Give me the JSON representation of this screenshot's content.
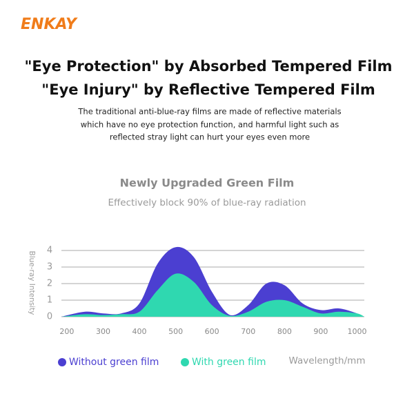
{
  "brand": "ENKAY",
  "headline": [
    "\"Eye Protection\" by Absorbed Tempered Film",
    "\"Eye Injury\" by Reflective Tempered Film"
  ],
  "description": [
    "The traditional anti-blue-ray films are made of reflective materials",
    "which have no eye protection function, and harmful light such as",
    "reflected stray light can hurt your eyes even more"
  ],
  "chart_data": {
    "type": "area",
    "title": "Newly Upgraded Green Film",
    "subtitle": "Effectively block 90% of blue-ray radiation",
    "x_label": "Wavelength/mm",
    "y_label": "Blue-ray Intensity",
    "x": [
      185,
      250,
      300,
      350,
      400,
      450,
      500,
      550,
      600,
      650,
      700,
      750,
      800,
      850,
      900,
      950,
      1000,
      1020
    ],
    "series": [
      {
        "name": "Without green film",
        "color": "#4b3fd1",
        "values": [
          0,
          0.3,
          0.2,
          0.2,
          0.8,
          3.2,
          4.2,
          3.6,
          1.5,
          0.1,
          0.7,
          2.0,
          1.9,
          0.8,
          0.4,
          0.5,
          0.2,
          0
        ]
      },
      {
        "name": "With green film",
        "color": "#2fd8b0",
        "values": [
          0,
          0.15,
          0.1,
          0.15,
          0.3,
          1.6,
          2.6,
          2.1,
          0.7,
          0.05,
          0.3,
          0.9,
          1.0,
          0.6,
          0.2,
          0.3,
          0.2,
          0
        ]
      }
    ],
    "xlim": [
      185,
      1020
    ],
    "ylim": [
      0,
      4.5
    ],
    "xticks": [
      200,
      300,
      400,
      500,
      600,
      700,
      800,
      900,
      1000
    ],
    "yticks": [
      0,
      1,
      2,
      3,
      4
    ],
    "grid": true
  }
}
